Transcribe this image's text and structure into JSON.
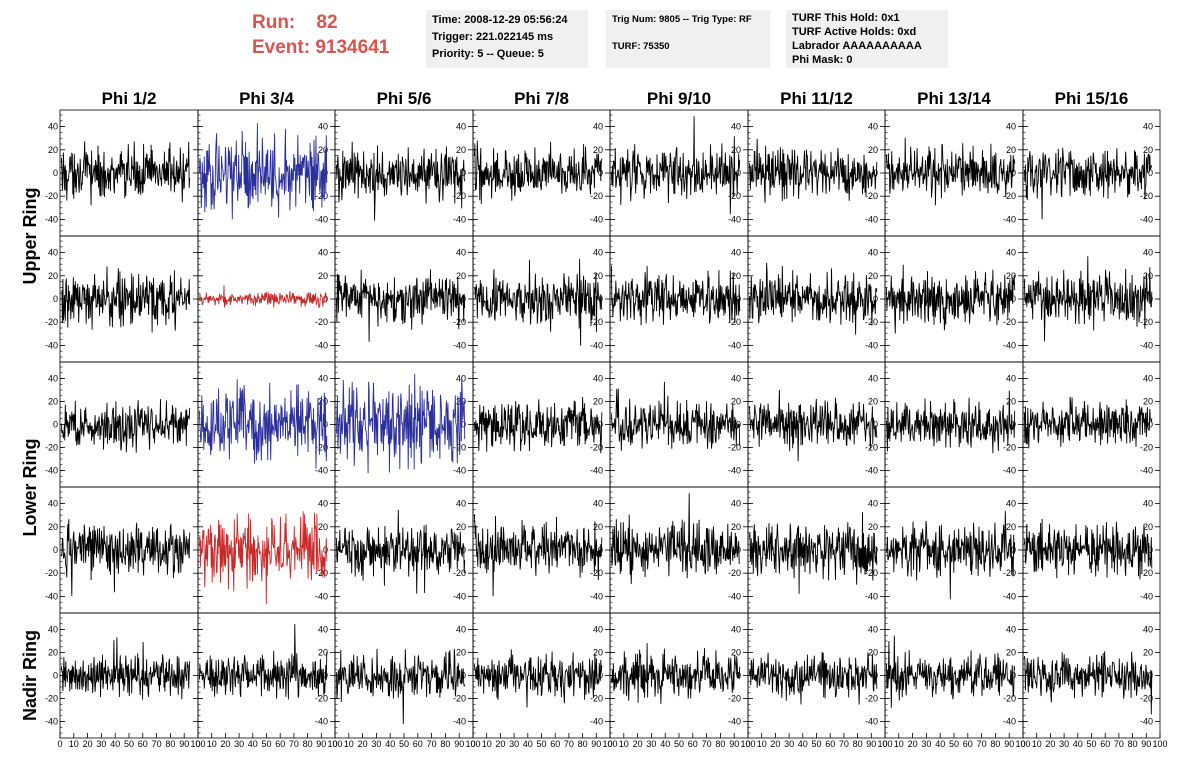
{
  "header": {
    "run_label": "Run:",
    "run_value": "82",
    "event_label": "Event:",
    "event_value": "9134641",
    "info_time": {
      "line1": "Time: 2008-12-29 05:56:24",
      "line2": "Trigger: 221.022145 ms",
      "line3": "Priority: 5 -- Queue: 5"
    },
    "info_trig": {
      "line1": "Trig Num: 9805 -- Trig Type: RF",
      "line2": "TURF: 75350"
    },
    "info_turf": {
      "line1": "TURF This Hold: 0x1",
      "line2": "TURF Active Holds: 0xd",
      "line3": "Labrador AAAAAAAAAA",
      "line4": "Phi Mask: 0"
    }
  },
  "colors": {
    "normal": "#000000",
    "blue": "#2b2f9b",
    "red": "#c82a2a"
  },
  "chart_data": {
    "type": "line",
    "columns": [
      "Phi 1/2",
      "Phi 3/4",
      "Phi 5/6",
      "Phi 7/8",
      "Phi 9/10",
      "Phi 11/12",
      "Phi 13/14",
      "Phi 15/16"
    ],
    "ring_labels": [
      {
        "text": "Upper Ring",
        "rows": [
          0,
          1
        ]
      },
      {
        "text": "Lower Ring",
        "rows": [
          2,
          3
        ]
      },
      {
        "text": "Nadir Ring",
        "rows": [
          4,
          4
        ]
      }
    ],
    "xlim": [
      0,
      100
    ],
    "ylim": [
      -50,
      50
    ],
    "x_ticks": [
      "0",
      "10",
      "20",
      "30",
      "40",
      "50",
      "60",
      "70",
      "80",
      "90",
      "100"
    ],
    "y_ticks": [
      40,
      20,
      0,
      -20,
      -40
    ],
    "grid": false,
    "trace_samples": 260,
    "row_amplitude": [
      14,
      14,
      13,
      14,
      12
    ],
    "panel_overrides": [
      {
        "row": 0,
        "col": 1,
        "color": "blue",
        "amplitude": 20
      },
      {
        "row": 1,
        "col": 1,
        "color": "red",
        "amplitude": 4
      },
      {
        "row": 2,
        "col": 1,
        "color": "blue",
        "amplitude": 20
      },
      {
        "row": 2,
        "col": 2,
        "color": "blue",
        "amplitude": 22
      },
      {
        "row": 3,
        "col": 1,
        "color": "red",
        "amplitude": 19
      }
    ]
  }
}
